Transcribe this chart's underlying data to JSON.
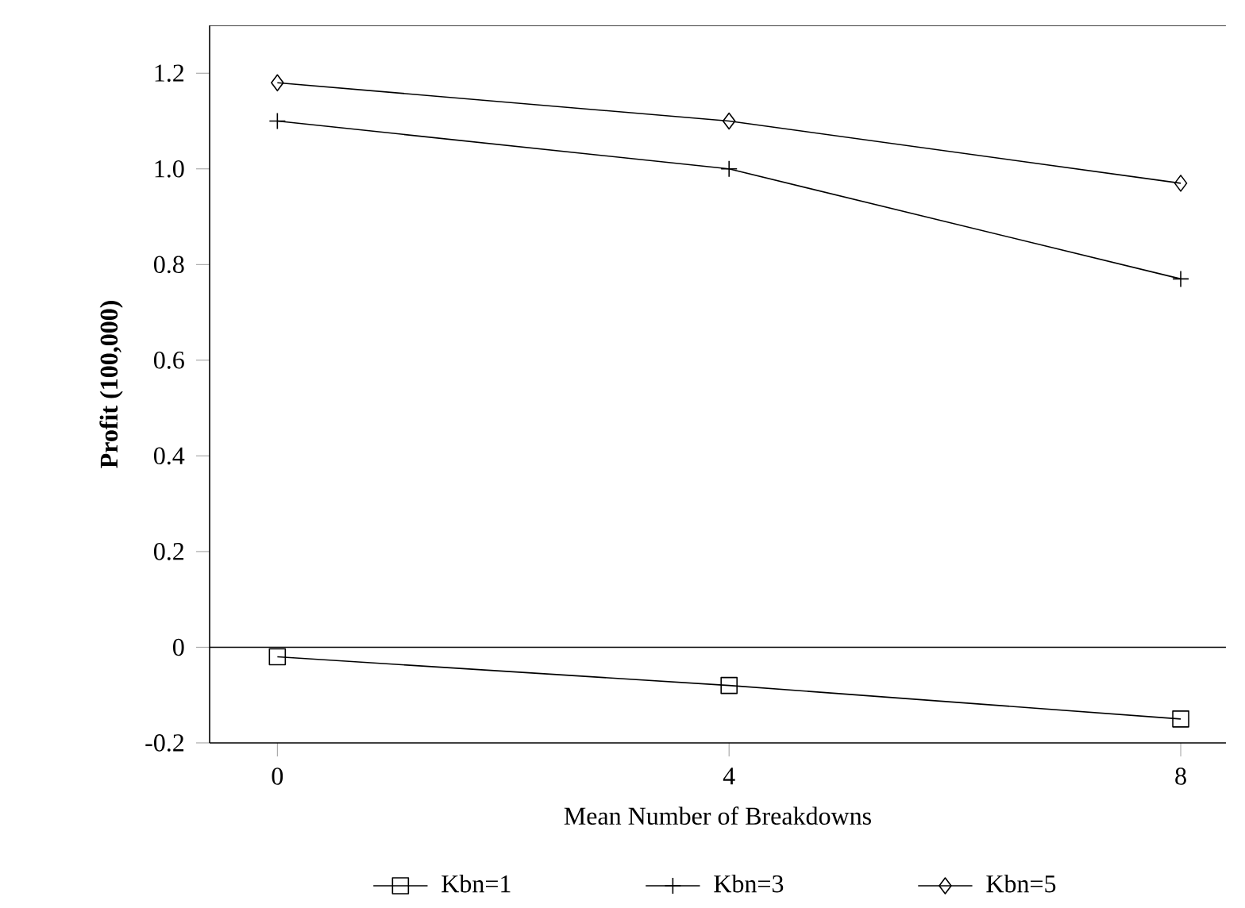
{
  "chart_data": {
    "type": "line",
    "xlabel": "Mean Number of Breakdowns",
    "ylabel": "Profit (100,000)",
    "x": [
      0,
      4,
      8
    ],
    "xlim": [
      -0.6,
      8.4
    ],
    "xticks": [
      0,
      4,
      8
    ],
    "ylim": [
      -0.2,
      1.3
    ],
    "yticks": [
      {
        "value": -0.2,
        "label": "-0.2"
      },
      0,
      {
        "value": 0.2,
        "label": "0.2"
      },
      {
        "value": 0.4,
        "label": "0.4"
      },
      {
        "value": 0.6,
        "label": "0.6"
      },
      {
        "value": 0.8,
        "label": "0.8"
      },
      {
        "value": 1.0,
        "label": "1.0"
      },
      {
        "value": 1.2,
        "label": "1.2"
      }
    ],
    "series": [
      {
        "name": "Kbn=1",
        "color": "#000000",
        "marker": "square",
        "values": [
          -0.02,
          -0.08,
          -0.15
        ]
      },
      {
        "name": "Kbn=3",
        "color": "#000000",
        "marker": "cross",
        "values": [
          1.1,
          1.0,
          0.77
        ]
      },
      {
        "name": "Kbn=5",
        "color": "#000000",
        "marker": "diamond",
        "values": [
          1.18,
          1.1,
          0.97
        ]
      }
    ],
    "ref_lines": [
      {
        "axis": "y",
        "value": 0,
        "color": "#000000"
      }
    ],
    "legend": "bottom",
    "grid": false,
    "line_style": "solid"
  }
}
